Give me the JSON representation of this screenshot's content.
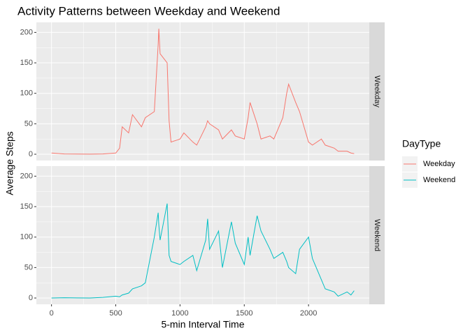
{
  "chart_data": {
    "type": "line",
    "title": "Activity Patterns between Weekday and Weekend",
    "x_label": "5-min Interval Time",
    "y_label": "Average Steps",
    "legend_title": "DayType",
    "legend_position": "right",
    "grid": true,
    "x": [
      0,
      100,
      200,
      300,
      400,
      500,
      530,
      550,
      600,
      630,
      700,
      730,
      800,
      830,
      835,
      845,
      900,
      915,
      930,
      1000,
      1030,
      1100,
      1130,
      1200,
      1215,
      1230,
      1300,
      1330,
      1400,
      1430,
      1500,
      1530,
      1545,
      1600,
      1630,
      1700,
      1730,
      1800,
      1830,
      1845,
      1900,
      1930,
      2000,
      2030,
      2100,
      2130,
      2200,
      2230,
      2300,
      2330,
      2355
    ],
    "series": [
      {
        "name": "Weekday",
        "color": "#F8766D",
        "values": [
          2,
          0.5,
          0.3,
          0.2,
          0.5,
          2,
          10,
          45,
          35,
          65,
          45,
          60,
          70,
          180,
          206,
          165,
          150,
          55,
          20,
          25,
          35,
          20,
          15,
          45,
          55,
          50,
          40,
          25,
          40,
          30,
          25,
          60,
          85,
          50,
          25,
          30,
          25,
          60,
          100,
          115,
          85,
          70,
          20,
          15,
          25,
          15,
          10,
          5,
          5,
          2,
          1
        ]
      },
      {
        "name": "Weekend",
        "color": "#00BFC4",
        "values": [
          0,
          0.5,
          0.2,
          0,
          1,
          3,
          2,
          5,
          8,
          15,
          20,
          25,
          100,
          140,
          120,
          95,
          155,
          70,
          60,
          55,
          60,
          70,
          45,
          95,
          130,
          80,
          110,
          50,
          125,
          90,
          55,
          100,
          70,
          135,
          110,
          80,
          65,
          75,
          60,
          50,
          40,
          80,
          100,
          65,
          30,
          15,
          10,
          3,
          10,
          5,
          12
        ]
      }
    ],
    "xlim": [
      -117.75,
      2472.75
    ],
    "xticks": [
      0,
      500,
      1000,
      1500,
      2000
    ],
    "ylim": [
      -10.3,
      216.5
    ],
    "yticks": [
      0,
      50,
      100,
      150,
      200
    ]
  }
}
